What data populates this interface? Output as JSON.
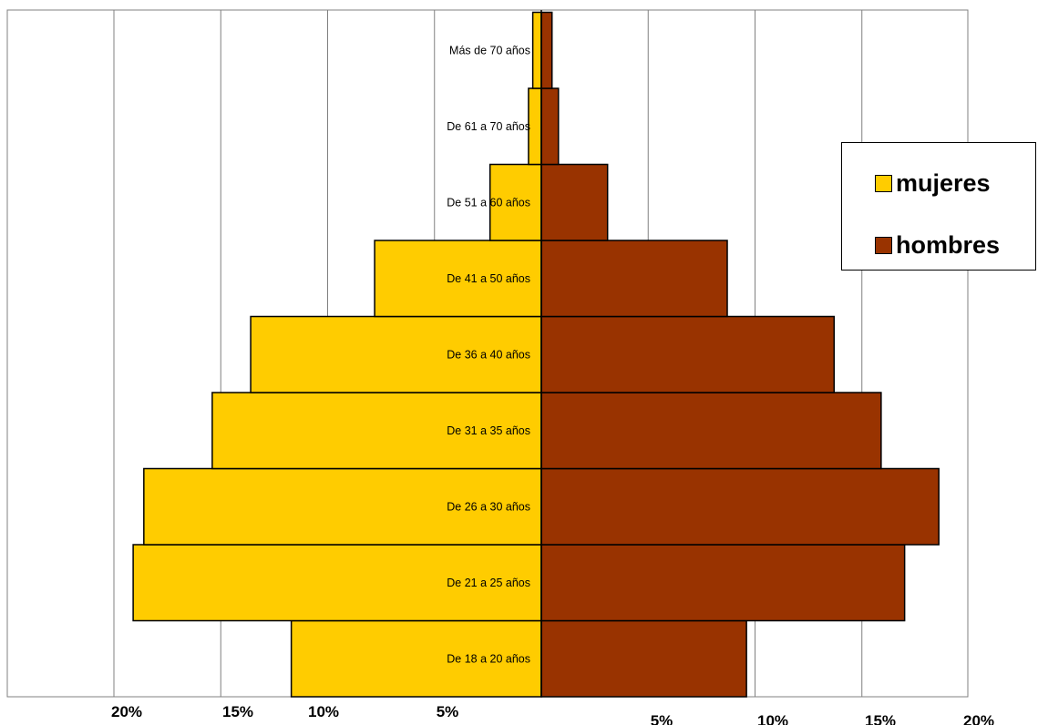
{
  "chart_data": {
    "type": "bar",
    "orientation": "horizontal",
    "layout": "population-pyramid",
    "categories": [
      "De 18 a 20 años",
      "De 21 a 25 años",
      "De 26 a 30 años",
      "De 31 a 35 años",
      "De 36 a 40 años",
      "De 41 a 50 años",
      "De 51 a 60 años",
      "De 61 a 70 años",
      "Más de 70 años"
    ],
    "series": [
      {
        "name": "mujeres",
        "side": "left",
        "color": "#FFCC00",
        "values": [
          11.7,
          19.1,
          18.6,
          15.4,
          13.6,
          7.8,
          2.4,
          0.6,
          0.4
        ]
      },
      {
        "name": "hombres",
        "side": "right",
        "color": "#993300",
        "values": [
          9.6,
          17.0,
          18.6,
          15.9,
          13.7,
          8.7,
          3.1,
          0.8,
          0.5
        ]
      }
    ],
    "x_ticks_left": [
      "20%",
      "15%",
      "10%",
      "5%"
    ],
    "x_ticks_right": [
      "5%",
      "10%",
      "15%",
      "20%"
    ],
    "xlim": [
      -25,
      20
    ],
    "grid": true,
    "legend_position": "right"
  },
  "legend": {
    "mujeres": "mujeres",
    "hombres": "hombres",
    "mujeres_color": "#FFCC00",
    "hombres_color": "#993300"
  }
}
